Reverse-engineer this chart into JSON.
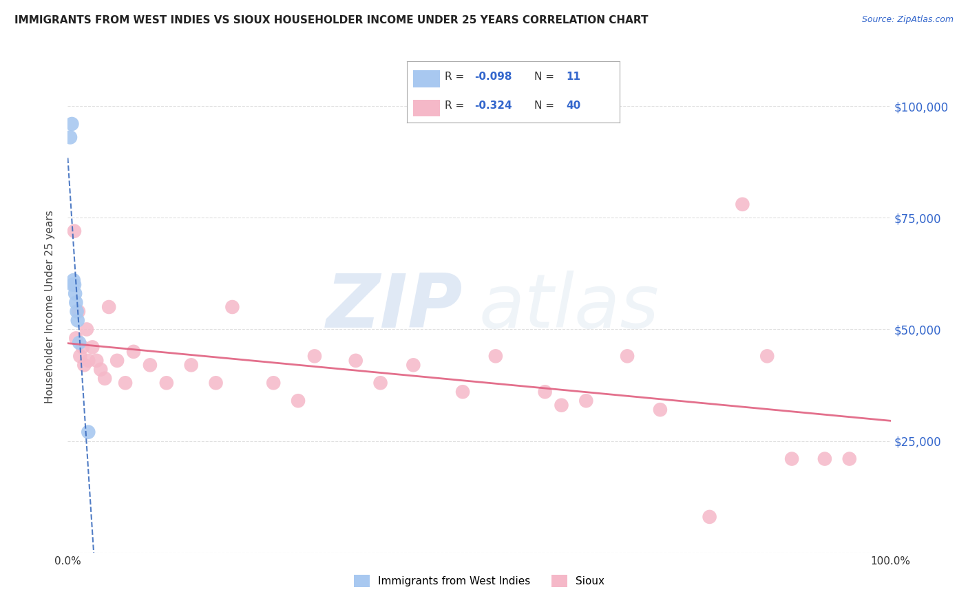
{
  "title": "IMMIGRANTS FROM WEST INDIES VS SIOUX HOUSEHOLDER INCOME UNDER 25 YEARS CORRELATION CHART",
  "source": "Source: ZipAtlas.com",
  "ylabel": "Householder Income Under 25 years",
  "legend_label1": "Immigrants from West Indies",
  "legend_label2": "Sioux",
  "R1": -0.098,
  "N1": 11,
  "R2": -0.324,
  "N2": 40,
  "color1": "#a8c8f0",
  "color2": "#f5b8c8",
  "trend1_color": "#3366bb",
  "trend2_color": "#e06080",
  "background": "#ffffff",
  "grid_color": "#cccccc",
  "blue_dots_x": [
    0.3,
    0.5,
    0.6,
    0.7,
    0.8,
    0.9,
    1.0,
    1.1,
    1.2,
    1.4,
    2.5
  ],
  "blue_dots_y": [
    93000,
    96000,
    60000,
    61000,
    60000,
    58000,
    56000,
    54000,
    52000,
    47000,
    27000
  ],
  "pink_dots_x": [
    0.8,
    1.0,
    1.3,
    1.5,
    1.8,
    2.0,
    2.3,
    2.5,
    3.0,
    3.5,
    4.0,
    4.5,
    5.0,
    6.0,
    7.0,
    8.0,
    10.0,
    12.0,
    15.0,
    18.0,
    20.0,
    25.0,
    28.0,
    30.0,
    35.0,
    38.0,
    42.0,
    48.0,
    52.0,
    58.0,
    60.0,
    63.0,
    68.0,
    72.0,
    78.0,
    82.0,
    85.0,
    88.0,
    92.0,
    95.0
  ],
  "pink_dots_y": [
    72000,
    48000,
    54000,
    44000,
    46000,
    42000,
    50000,
    43000,
    46000,
    43000,
    41000,
    39000,
    55000,
    43000,
    38000,
    45000,
    42000,
    38000,
    42000,
    38000,
    55000,
    38000,
    34000,
    44000,
    43000,
    38000,
    42000,
    36000,
    44000,
    36000,
    33000,
    34000,
    44000,
    32000,
    8000,
    78000,
    44000,
    21000,
    21000,
    21000
  ],
  "xlim": [
    0,
    100
  ],
  "ylim": [
    0,
    110000
  ],
  "yticks": [
    0,
    25000,
    50000,
    75000,
    100000
  ],
  "ytick_labels": [
    "",
    "$25,000",
    "$50,000",
    "$75,000",
    "$100,000"
  ],
  "xtick_labels": [
    "0.0%",
    "100.0%"
  ],
  "title_color": "#222222",
  "source_color": "#3366cc",
  "axis_label_color": "#444444",
  "tick_label_color": "#3366cc"
}
